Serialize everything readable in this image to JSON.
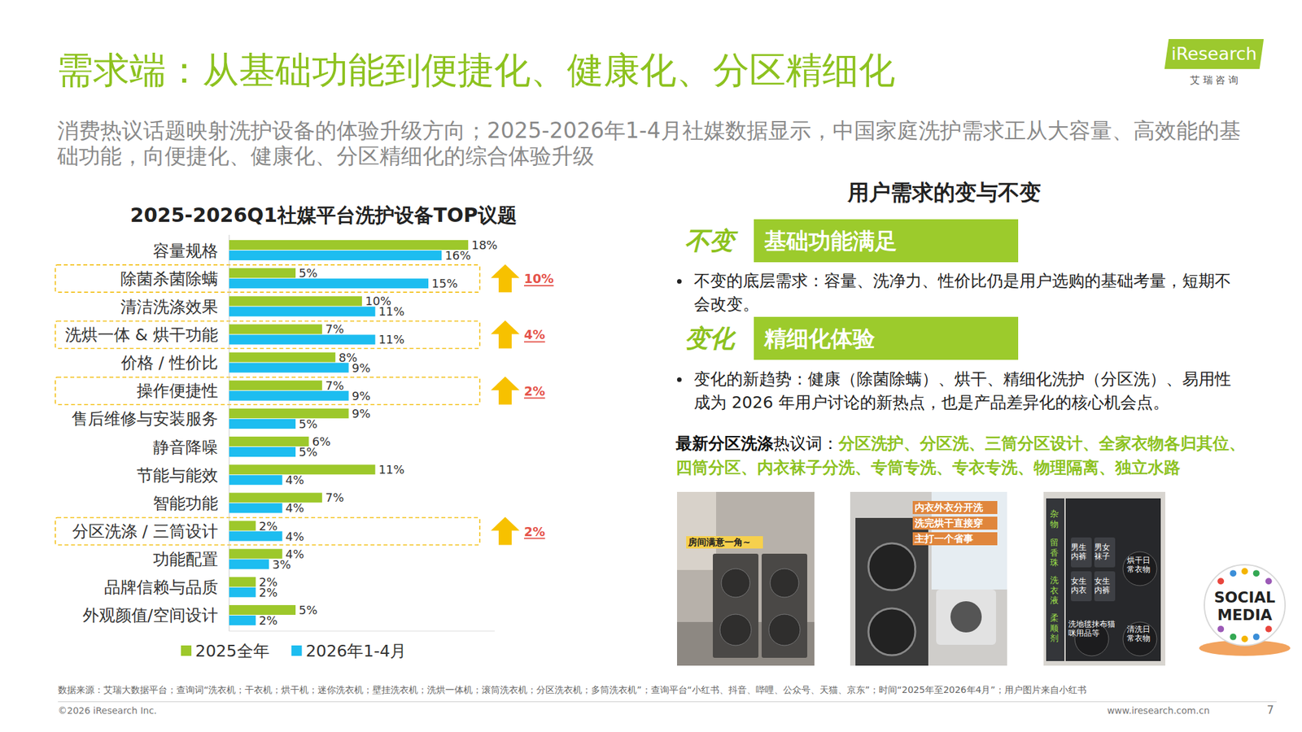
{
  "page": {
    "title": "需求端：从基础功能到便捷化、健康化、分区精细化",
    "subtitle": "消费热议话题映射洗护设备的体验升级方向；2025-2026年1-4月社媒数据显示，中国家庭洗护需求正从大容量、高效能的基础功能，向便捷化、健康化、分区精细化的综合体验升级",
    "logo": {
      "name": "iResearch",
      "sub": "艾 瑞 咨 询"
    },
    "right_panel": {
      "heading": "用户需求的变与不变",
      "sections": [
        {
          "tag": "不变",
          "label": "基础功能满足",
          "bullet": "不变的底层需求：容量、洗净力、性价比仍是用户选购的基础考量，短期不会改变。"
        },
        {
          "tag": "变化",
          "label": "精细化体验",
          "bullet": "变化的新趋势：健康（除菌除螨）、烘干、精细化洗护（分区洗）、易用性成为 2026 年用户讨论的新热点，也是产品差异化的核心机会点。"
        }
      ],
      "keywords_lead_bold": "最新分区洗涤",
      "keywords_lead": "热议词：",
      "keywords": "分区洗护、分区洗、三筒分区设计、全家衣物各归其位、四筒分区、内衣袜子分洗、专筒专洗、专衣专洗、物理隔离、独立水路"
    },
    "photos": [
      {
        "captions": [
          "房间满意一角~"
        ]
      },
      {
        "captions": [
          "内衣外衣分开洗",
          "洗完烘干直接穿",
          "主打一个省事"
        ]
      },
      {
        "captions": [
          "杂物",
          "留香珠",
          "洗衣液",
          "柔顺剂",
          "男生内裤",
          "男女袜子",
          "女生内衣",
          "女生内裤",
          "烘干日常衣物",
          "洗地毯抹布猫咪用品等",
          "清洗日常衣物"
        ]
      }
    ],
    "badge": [
      "SOCIAL",
      "MEDIA"
    ],
    "footer": {
      "source": "数据来源：艾瑞大数据平台；查询词“洗衣机；干衣机；烘干机；迷你洗衣机；壁挂洗衣机；洗烘一体机；滚筒洗衣机；分区洗衣机；多筒洗衣机”；查询平台“小红书、抖音、哔哩、公众号、天猫、京东”；时间“2025年至2026年4月”；用户图片来自小红书",
      "copyright": "©2026 iResearch Inc.",
      "url": "www.iresearch.com.cn",
      "page": "7"
    }
  },
  "chart_data": {
    "type": "bar",
    "orientation": "horizontal",
    "title": "2025-2026Q1社媒平台洗护设备TOP议题",
    "categories": [
      "容量规格",
      "除菌杀菌除螨",
      "清洁洗涤效果",
      "洗烘一体 & 烘干功能",
      "价格 / 性价比",
      "操作便捷性",
      "售后维修与安装服务",
      "静音降噪",
      "节能与能效",
      "智能功能",
      "分区洗涤 / 三筒设计",
      "功能配置",
      "品牌信赖与品质",
      "外观颜值/空间设计"
    ],
    "series": [
      {
        "name": "2025全年",
        "color": "#9dc82b",
        "values": [
          18,
          5,
          10,
          7,
          8,
          7,
          9,
          6,
          11,
          7,
          2,
          4,
          2,
          5
        ],
        "value_labels": [
          "18%",
          "5%",
          "10%",
          "7%",
          "8%",
          "7%",
          "9%",
          "6%",
          "11%",
          "7%",
          "2%",
          "4%",
          "2%",
          "5%"
        ]
      },
      {
        "name": "2026年1-4月",
        "color": "#1dbdf0",
        "values": [
          16,
          15,
          11,
          11,
          9,
          9,
          5,
          5,
          4,
          4,
          4,
          3,
          2,
          2
        ],
        "value_labels": [
          "16%",
          "15%",
          "11%",
          "11%",
          "9%",
          "9%",
          "5%",
          "5%",
          "4%",
          "4%",
          "4%",
          "3%",
          "2%",
          "2%"
        ]
      }
    ],
    "xlim": [
      0,
      20
    ],
    "tick_labels": false,
    "grid": false,
    "data_labels": true,
    "legend": "bottom",
    "annotations": [
      {
        "category": "除菌杀菌除螨",
        "text": "10%"
      },
      {
        "category": "洗烘一体 & 烘干功能",
        "text": "4%"
      },
      {
        "category": "操作便捷性",
        "text": "2%"
      },
      {
        "category": "分区洗涤 / 三筒设计",
        "text": "2%"
      }
    ]
  }
}
